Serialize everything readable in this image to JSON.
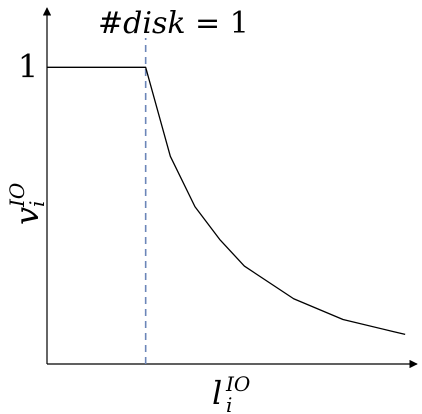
{
  "chart_data": {
    "type": "line",
    "title": "#disk = 1",
    "title_parts": {
      "hash": "#",
      "var": "disk",
      "rest": " = 1"
    },
    "xlabel": {
      "base": "l",
      "sub": "i",
      "sup": "IO"
    },
    "ylabel": {
      "base": "v",
      "sub": "i",
      "sup": "IO"
    },
    "yticks": [
      "1"
    ],
    "series": [
      {
        "values": [
          [
            0,
            1
          ],
          [
            1,
            1
          ],
          [
            1.25,
            0.7
          ],
          [
            1.5,
            0.53
          ],
          [
            1.75,
            0.42
          ],
          [
            2,
            0.33
          ],
          [
            2.5,
            0.22
          ],
          [
            3,
            0.15
          ],
          [
            3.5,
            0.11
          ],
          [
            3.63,
            0.1
          ]
        ]
      }
    ],
    "vline": {
      "x": 1,
      "style": "dashed",
      "color": "#6b86b8"
    },
    "xlim": [
      0,
      3.75
    ],
    "ylim": [
      0,
      1.2
    ],
    "grid": false,
    "colors": {
      "axis": "#000000",
      "line": "#000000"
    }
  }
}
